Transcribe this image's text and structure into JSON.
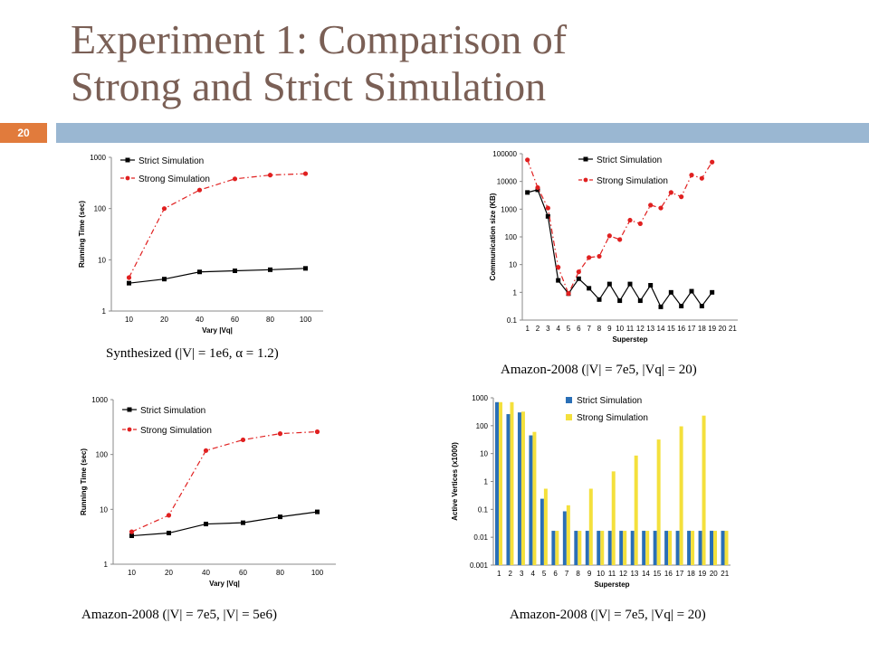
{
  "slide": {
    "title_line1": "Experiment 1: Comparison of",
    "title_line2": "Strong and Strict Simulation",
    "slide_number": "20",
    "colors": {
      "title": "#7a5f55",
      "band": "#9ab7d2",
      "number_box": "#e17b3c"
    }
  },
  "captions": [
    "Synthesized (|V| = 1e6, α = 1.2)",
    "Amazon-2008 (|V| = 7e5, |Vq| = 20)",
    "Amazon-2008 (|V| = 7e5, |V| = 5e6)",
    "Amazon-2008 (|V| = 7e5, |Vq| = 20)"
  ],
  "chart_data": [
    {
      "type": "line",
      "xlabel": "Vary |Vq|",
      "ylabel": "Running Time (sec)",
      "scale": "log",
      "ylim": [
        1,
        1000
      ],
      "yticks": [
        "1",
        "10",
        "100",
        "1000"
      ],
      "categories": [
        "10",
        "20",
        "40",
        "60",
        "80",
        "100"
      ],
      "legend": "top-left",
      "series": [
        {
          "name": "Strict Simulation",
          "color": "#000000",
          "values": [
            3.5,
            4.2,
            5.8,
            6.1,
            6.4,
            6.8
          ]
        },
        {
          "name": "Strong  Simulation",
          "color": "#e02020",
          "values": [
            4.5,
            100,
            230,
            380,
            450,
            480
          ]
        }
      ]
    },
    {
      "type": "line",
      "xlabel": "Superstep",
      "ylabel": "Communication size (KB)",
      "scale": "log",
      "ylim": [
        0.1,
        100000
      ],
      "yticks": [
        "0.1",
        "1",
        "10",
        "100",
        "1000",
        "10000",
        "100000"
      ],
      "categories": [
        "1",
        "2",
        "3",
        "4",
        "5",
        "6",
        "7",
        "8",
        "9",
        "10",
        "11",
        "12",
        "13",
        "14",
        "15",
        "16",
        "17",
        "18",
        "19",
        "20",
        "21"
      ],
      "legend": "top-center",
      "series": [
        {
          "name": "Strict Simulation",
          "color": "#000000",
          "values": [
            4000,
            5000,
            550,
            2.7,
            0.9,
            3.1,
            1.4,
            0.55,
            2,
            0.5,
            2,
            0.5,
            1.8,
            0.3,
            1,
            0.32,
            1.1,
            0.32,
            1,
            null,
            null
          ]
        },
        {
          "name": "Strong Simulation",
          "color": "#e02020",
          "values": [
            60000,
            6000,
            1100,
            8,
            0.9,
            5.5,
            18,
            20,
            110,
            80,
            400,
            300,
            1400,
            1100,
            4000,
            2800,
            17000,
            13000,
            50000,
            null,
            null
          ]
        }
      ]
    },
    {
      "type": "line",
      "xlabel": "Vary |Vq|",
      "ylabel": "Running Time (sec)",
      "scale": "log",
      "ylim": [
        1,
        1000
      ],
      "yticks": [
        "1",
        "10",
        "100",
        "1000"
      ],
      "categories": [
        "10",
        "20",
        "40",
        "60",
        "80",
        "100"
      ],
      "legend": "top-left",
      "series": [
        {
          "name": "Strict Simulation",
          "color": "#000000",
          "values": [
            3.3,
            3.7,
            5.4,
            5.7,
            7.3,
            9
          ]
        },
        {
          "name": "Strong Simulation",
          "color": "#e02020",
          "values": [
            3.9,
            7.8,
            118,
            185,
            240,
            260
          ]
        }
      ]
    },
    {
      "type": "bar",
      "xlabel": "Superstep",
      "ylabel": "Active Vertices (x1000)",
      "scale": "log",
      "ylim": [
        0.001,
        1000
      ],
      "yticks": [
        "0.001",
        "0.01",
        "0.1",
        "1",
        "10",
        "100",
        "1000"
      ],
      "categories": [
        "1",
        "2",
        "3",
        "4",
        "5",
        "6",
        "7",
        "8",
        "9",
        "10",
        "11",
        "12",
        "13",
        "14",
        "15",
        "16",
        "17",
        "18",
        "19",
        "20",
        "21"
      ],
      "legend": "top-center",
      "series": [
        {
          "name": "Strict Simulation",
          "color": "#2a6fb6",
          "values": [
            700,
            260,
            300,
            45,
            0.24,
            0.017,
            0.085,
            0.017,
            0.017,
            0.017,
            0.017,
            0.017,
            0.017,
            0.017,
            0.017,
            0.017,
            0.017,
            0.017,
            0.017,
            0.017,
            0.017
          ]
        },
        {
          "name": "Strong Simulation",
          "color": "#f4e03c",
          "values": [
            700,
            700,
            320,
            60,
            0.55,
            0.017,
            0.14,
            0.017,
            0.55,
            0.017,
            2.3,
            0.017,
            8.5,
            0.017,
            32,
            0.017,
            95,
            0.017,
            230,
            0.017,
            0.017
          ]
        }
      ]
    }
  ]
}
